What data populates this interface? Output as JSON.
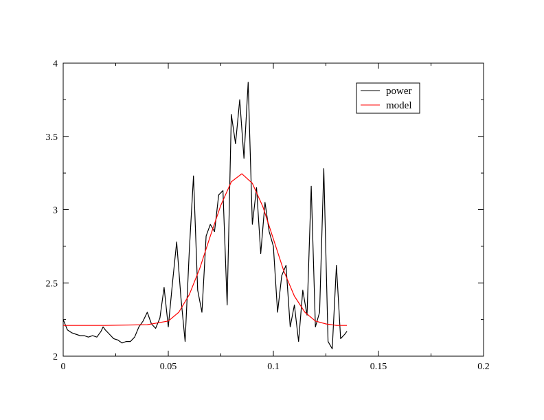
{
  "chart_data": {
    "type": "line",
    "title": "",
    "xlabel": "",
    "ylabel": "",
    "xlim": [
      0,
      0.2
    ],
    "ylim": [
      2,
      4
    ],
    "x_ticks": [
      0,
      0.05,
      0.1,
      0.15,
      0.2
    ],
    "y_ticks": [
      2,
      2.5,
      3,
      3.5,
      4
    ],
    "x_tick_labels": [
      "0",
      "0.05",
      "0.1",
      "0.15",
      "0.2"
    ],
    "y_tick_labels": [
      "2",
      "2.5",
      "3",
      "3.5",
      "4"
    ],
    "grid": false,
    "legend_position": "top-right",
    "series": [
      {
        "name": "power",
        "color": "#000000",
        "x": [
          0.0,
          0.002,
          0.004,
          0.006,
          0.008,
          0.01,
          0.012,
          0.014,
          0.016,
          0.018,
          0.019,
          0.02,
          0.022,
          0.024,
          0.026,
          0.028,
          0.03,
          0.032,
          0.034,
          0.036,
          0.038,
          0.04,
          0.042,
          0.044,
          0.046,
          0.048,
          0.05,
          0.052,
          0.054,
          0.056,
          0.058,
          0.06,
          0.062,
          0.064,
          0.066,
          0.068,
          0.07,
          0.072,
          0.074,
          0.076,
          0.078,
          0.08,
          0.082,
          0.084,
          0.086,
          0.088,
          0.09,
          0.092,
          0.094,
          0.096,
          0.098,
          0.1,
          0.102,
          0.104,
          0.106,
          0.108,
          0.11,
          0.112,
          0.114,
          0.116,
          0.118,
          0.12,
          0.122,
          0.124,
          0.126,
          0.128,
          0.13,
          0.132,
          0.134,
          0.135
        ],
        "values": [
          2.25,
          2.18,
          2.16,
          2.15,
          2.14,
          2.14,
          2.13,
          2.14,
          2.13,
          2.17,
          2.2,
          2.18,
          2.15,
          2.12,
          2.11,
          2.09,
          2.1,
          2.1,
          2.13,
          2.2,
          2.24,
          2.3,
          2.22,
          2.19,
          2.26,
          2.47,
          2.2,
          2.5,
          2.78,
          2.4,
          2.1,
          2.72,
          3.23,
          2.45,
          2.3,
          2.82,
          2.9,
          2.85,
          3.1,
          3.13,
          2.35,
          3.65,
          3.45,
          3.75,
          3.35,
          3.87,
          2.9,
          3.15,
          2.7,
          3.05,
          2.85,
          2.75,
          2.3,
          2.55,
          2.62,
          2.2,
          2.35,
          2.1,
          2.45,
          2.28,
          3.16,
          2.2,
          2.3,
          3.28,
          2.1,
          2.05,
          2.62,
          2.12,
          2.15,
          2.17
        ]
      },
      {
        "name": "model",
        "color": "#ff0000",
        "x": [
          0.0,
          0.02,
          0.04,
          0.05,
          0.055,
          0.06,
          0.065,
          0.07,
          0.075,
          0.08,
          0.085,
          0.09,
          0.095,
          0.1,
          0.105,
          0.11,
          0.115,
          0.12,
          0.125,
          0.13,
          0.135
        ],
        "values": [
          2.21,
          2.21,
          2.215,
          2.24,
          2.3,
          2.42,
          2.6,
          2.82,
          3.03,
          3.19,
          3.245,
          3.18,
          3.02,
          2.8,
          2.58,
          2.41,
          2.3,
          2.24,
          2.22,
          2.21,
          2.21
        ]
      }
    ]
  }
}
